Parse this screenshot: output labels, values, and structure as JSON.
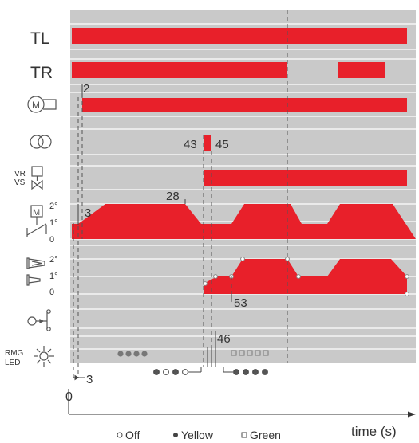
{
  "rows": {
    "tl": "TL",
    "tr": "TR",
    "vr": "VR",
    "vs": "VS",
    "m": "M",
    "rmg": "RMG",
    "led": "LED"
  },
  "levels": {
    "deg2": "2°",
    "deg1": "1°",
    "zero": "0"
  },
  "markers": {
    "m2": "2",
    "m43": "43",
    "m45": "45",
    "m3a": "3",
    "m28": "28",
    "m53": "53",
    "m46": "46",
    "m3b": "3",
    "origin": "0"
  },
  "axis": {
    "time_label": "time (s)"
  },
  "legend": {
    "off": "Off",
    "yellow": "Yellow",
    "green": "Green"
  },
  "colors": {
    "signal": "#e8202a",
    "track": "#c9c9c9",
    "line": "#6e6e6e",
    "dots": "#777777"
  },
  "icons": [
    "motor-icon",
    "transformer-icon",
    "valve-icon",
    "tilt-motor-icon",
    "light-beam-icon",
    "sensor-icon",
    "led-icon"
  ]
}
